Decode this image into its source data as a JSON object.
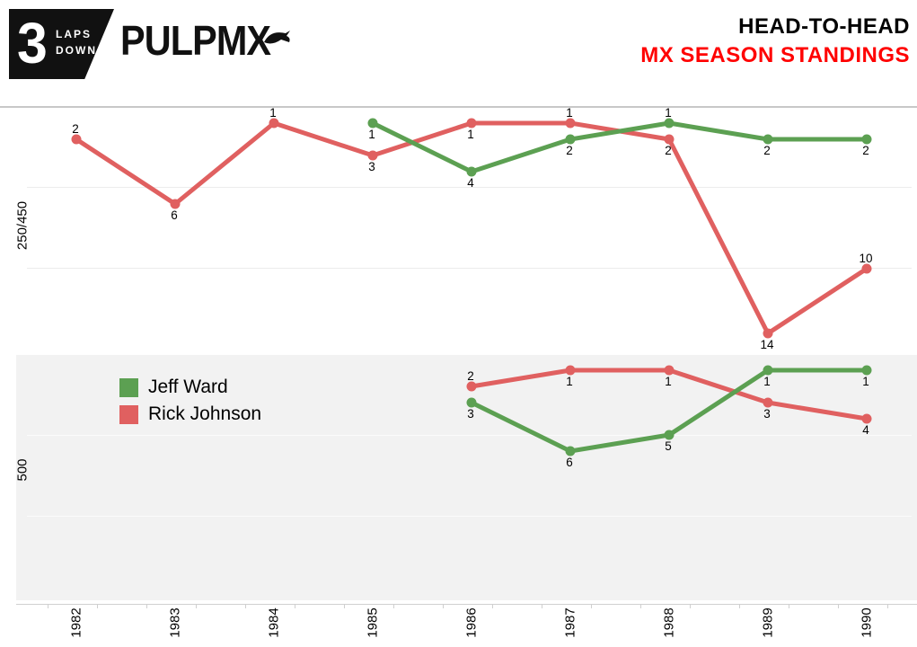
{
  "header": {
    "title_line1": "HEAD-TO-HEAD",
    "title_line2": "MX SEASON STANDINGS",
    "title_line2_color": "#ff0000",
    "logo": {
      "badge_number": "3",
      "badge_word1": "LAPS",
      "badge_word2": "DOWN",
      "brand": "PULPMX"
    }
  },
  "chart_data": {
    "type": "line",
    "title": "HEAD-TO-HEAD MX SEASON STANDINGS",
    "x_categories": [
      "1982",
      "1983",
      "1984",
      "1985",
      "1986",
      "1987",
      "1988",
      "1989",
      "1990"
    ],
    "value_meaning": "season standing position (1 = best, labels shown at each point)",
    "grid": "horizontal gridlines on, x-axis labels rotated 90",
    "legend_position": "inside lower panel, left",
    "panels": [
      {
        "label": "250/450",
        "series": [
          {
            "name": "Jeff Ward",
            "color": "#5ca052",
            "values": [
              null,
              null,
              null,
              1,
              4,
              2,
              1,
              2,
              2
            ],
            "label_placement": [
              null,
              null,
              null,
              "below",
              "below",
              "below",
              "above",
              "below",
              "below"
            ]
          },
          {
            "name": "Rick Johnson",
            "color": "#e06060",
            "values": [
              2,
              6,
              1,
              3,
              1,
              1,
              2,
              14,
              10
            ],
            "label_placement": [
              "above",
              "below",
              "above",
              "below",
              "below",
              "above",
              "below",
              "below",
              "above"
            ]
          }
        ]
      },
      {
        "label": "500",
        "series": [
          {
            "name": "Jeff Ward",
            "color": "#5ca052",
            "values": [
              null,
              null,
              null,
              null,
              3,
              6,
              5,
              1,
              1
            ],
            "label_placement": [
              null,
              null,
              null,
              null,
              "below",
              "below",
              "below",
              "below",
              "below"
            ]
          },
          {
            "name": "Rick Johnson",
            "color": "#e06060",
            "values": [
              null,
              null,
              null,
              null,
              2,
              1,
              1,
              3,
              4
            ],
            "label_placement": [
              null,
              null,
              null,
              null,
              "above",
              "below",
              "below",
              "below",
              "below"
            ]
          }
        ]
      }
    ],
    "legend": [
      {
        "label": "Jeff Ward",
        "color": "#5ca052"
      },
      {
        "label": "Rick Johnson",
        "color": "#e06060"
      }
    ]
  }
}
